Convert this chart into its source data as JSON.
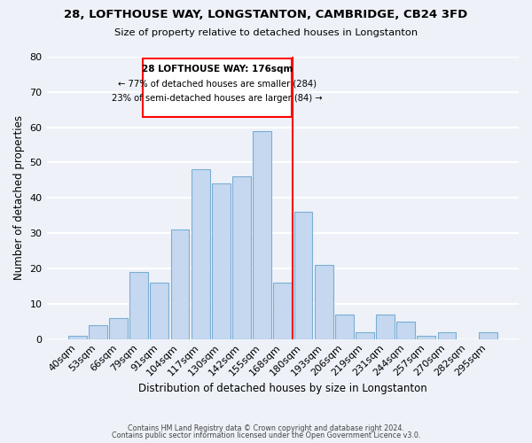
{
  "title": "28, LOFTHOUSE WAY, LONGSTANTON, CAMBRIDGE, CB24 3FD",
  "subtitle": "Size of property relative to detached houses in Longstanton",
  "xlabel": "Distribution of detached houses by size in Longstanton",
  "ylabel": "Number of detached properties",
  "bar_labels": [
    "40sqm",
    "53sqm",
    "66sqm",
    "79sqm",
    "91sqm",
    "104sqm",
    "117sqm",
    "130sqm",
    "142sqm",
    "155sqm",
    "168sqm",
    "180sqm",
    "193sqm",
    "206sqm",
    "219sqm",
    "231sqm",
    "244sqm",
    "257sqm",
    "270sqm",
    "282sqm",
    "295sqm"
  ],
  "bar_values": [
    1,
    4,
    6,
    19,
    16,
    31,
    48,
    44,
    46,
    59,
    16,
    36,
    21,
    7,
    2,
    7,
    5,
    1,
    2,
    0,
    2
  ],
  "bar_color": "#c5d8f0",
  "bar_edge_color": "#7aaed4",
  "background_color": "#eef2f8",
  "grid_color": "#ffffff",
  "ylim": [
    0,
    80
  ],
  "yticks": [
    0,
    10,
    20,
    30,
    40,
    50,
    60,
    70,
    80
  ],
  "property_line_x": 10.5,
  "property_line_label": "28 LOFTHOUSE WAY: 176sqm",
  "annotation_line1": "← 77% of detached houses are smaller (284)",
  "annotation_line2": "23% of semi-detached houses are larger (84) →",
  "footer1": "Contains HM Land Registry data © Crown copyright and database right 2024.",
  "footer2": "Contains public sector information licensed under the Open Government Licence v3.0."
}
